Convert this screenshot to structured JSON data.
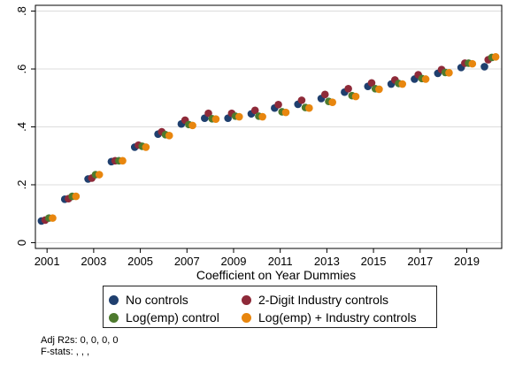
{
  "chart_data": {
    "type": "scatter",
    "title": "",
    "xlabel": "Coefficient on Year Dummies",
    "ylabel": "",
    "xlim": [
      2000.5,
      2020.5
    ],
    "ylim": [
      -0.02,
      0.82
    ],
    "x_ticks": [
      2001,
      2003,
      2005,
      2007,
      2009,
      2011,
      2013,
      2015,
      2017,
      2019
    ],
    "x_tick_labels": [
      "2001",
      "2003",
      "2005",
      "2007",
      "2009",
      "2011",
      "2013",
      "2015",
      "2017",
      "2019"
    ],
    "y_ticks": [
      0,
      0.2,
      0.4,
      0.6,
      0.8
    ],
    "y_tick_labels": [
      "0",
      ".2",
      ".4",
      ".6",
      ".8"
    ],
    "legend_position": "bottom",
    "x": [
      2001,
      2002,
      2003,
      2004,
      2005,
      2006,
      2007,
      2008,
      2009,
      2010,
      2011,
      2012,
      2013,
      2014,
      2015,
      2016,
      2017,
      2018,
      2019,
      2020
    ],
    "series": [
      {
        "name": "No controls",
        "color": "#1f3f6e",
        "values": [
          0.075,
          0.15,
          0.22,
          0.28,
          0.33,
          0.375,
          0.41,
          0.43,
          0.43,
          0.445,
          0.465,
          0.478,
          0.498,
          0.52,
          0.54,
          0.548,
          0.565,
          0.585,
          0.605,
          0.608
        ]
      },
      {
        "name": "2-Digit Industry controls",
        "color": "#8e2a39",
        "values": [
          0.078,
          0.152,
          0.223,
          0.283,
          0.337,
          0.383,
          0.423,
          0.447,
          0.447,
          0.457,
          0.477,
          0.492,
          0.512,
          0.532,
          0.552,
          0.562,
          0.58,
          0.598,
          0.62,
          0.632
        ]
      },
      {
        "name": "Log(emp) control",
        "color": "#4e7a2e",
        "values": [
          0.085,
          0.16,
          0.235,
          0.283,
          0.333,
          0.373,
          0.408,
          0.428,
          0.437,
          0.437,
          0.452,
          0.467,
          0.488,
          0.508,
          0.532,
          0.55,
          0.567,
          0.588,
          0.62,
          0.64
        ]
      },
      {
        "name": "Log(emp) + Industry controls",
        "color": "#e8860e",
        "values": [
          0.085,
          0.16,
          0.235,
          0.283,
          0.33,
          0.37,
          0.405,
          0.427,
          0.435,
          0.435,
          0.45,
          0.465,
          0.485,
          0.505,
          0.53,
          0.548,
          0.565,
          0.587,
          0.618,
          0.642
        ]
      }
    ]
  },
  "legend": {
    "items": [
      "No controls",
      "2-Digit Industry controls",
      "Log(emp) control",
      "Log(emp) + Industry controls"
    ]
  },
  "notes": {
    "adj_r2": "Adj R2s: 0, 0, 0, 0",
    "f_stats": "F-stats: , , ,"
  }
}
